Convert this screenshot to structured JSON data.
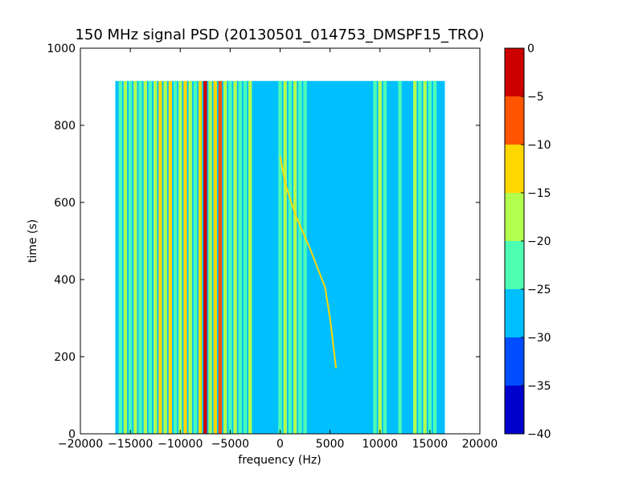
{
  "chart_data": {
    "type": "heatmap",
    "title": "150 MHz signal PSD (20130501_014753_DMSPF15_TRO)",
    "xlabel": "frequency (Hz)",
    "ylabel": "time (s)",
    "xlim": [
      -20000,
      20000
    ],
    "ylim": [
      0,
      1000
    ],
    "xticks": [
      -20000,
      -15000,
      -10000,
      -5000,
      0,
      5000,
      10000,
      15000,
      20000
    ],
    "xtick_labels": [
      "−20000",
      "−15000",
      "−10000",
      "−5000",
      "0",
      "5000",
      "10000",
      "15000",
      "20000"
    ],
    "yticks": [
      0,
      200,
      400,
      600,
      800,
      1000
    ],
    "ytick_labels": [
      "0",
      "200",
      "400",
      "600",
      "800",
      "1000"
    ],
    "grid": false,
    "data_extent": {
      "freq_min": -16500,
      "freq_max": 16500,
      "time_min": 0,
      "time_max": 915
    },
    "background_level": -27.5,
    "colorbar": {
      "vmin": -40,
      "vmax": 0,
      "ticks": [
        0,
        -5,
        -10,
        -15,
        -20,
        -25,
        -30,
        -35,
        -40
      ],
      "tick_labels": [
        "0",
        "−5",
        "−10",
        "−15",
        "−20",
        "−25",
        "−30",
        "−35",
        "−40"
      ],
      "levels": [
        {
          "range": [
            -40,
            -35
          ],
          "color": "#0000cd"
        },
        {
          "range": [
            -35,
            -30
          ],
          "color": "#004dff"
        },
        {
          "range": [
            -30,
            -25
          ],
          "color": "#00bfff"
        },
        {
          "range": [
            -25,
            -20
          ],
          "color": "#4dffb3"
        },
        {
          "range": [
            -20,
            -15
          ],
          "color": "#b3ff4d"
        },
        {
          "range": [
            -15,
            -10
          ],
          "color": "#ffd700"
        },
        {
          "range": [
            -10,
            -5
          ],
          "color": "#ff5500"
        },
        {
          "range": [
            -5,
            0
          ],
          "color": "#cd0000"
        }
      ]
    },
    "stationary_lines": [
      {
        "freq": -16000,
        "level": -22.5
      },
      {
        "freq": -15500,
        "level": -17.5
      },
      {
        "freq": -15000,
        "level": -22.5
      },
      {
        "freq": -14500,
        "level": -17.5
      },
      {
        "freq": -14000,
        "level": -22.5
      },
      {
        "freq": -13500,
        "level": -17.5
      },
      {
        "freq": -13000,
        "level": -22.5
      },
      {
        "freq": -12500,
        "level": -17.5
      },
      {
        "freq": -12000,
        "level": -12.5
      },
      {
        "freq": -11500,
        "level": -17.5
      },
      {
        "freq": -11000,
        "level": -12.5
      },
      {
        "freq": -10500,
        "level": -22.5
      },
      {
        "freq": -10000,
        "level": -17.5
      },
      {
        "freq": -9500,
        "level": -12.5
      },
      {
        "freq": -9000,
        "level": -17.5
      },
      {
        "freq": -8500,
        "level": -22.5
      },
      {
        "freq": -8000,
        "level": -12.5
      },
      {
        "freq": -7500,
        "level": -2.5
      },
      {
        "freq": -7000,
        "level": -17.5
      },
      {
        "freq": -6500,
        "level": -12.5
      },
      {
        "freq": -6000,
        "level": -7.5
      },
      {
        "freq": -5500,
        "level": -17.5
      },
      {
        "freq": -5000,
        "level": -22.5
      },
      {
        "freq": -4500,
        "level": -17.5
      },
      {
        "freq": -4000,
        "level": -22.5
      },
      {
        "freq": -3500,
        "level": -22.5
      },
      {
        "freq": -3000,
        "level": -17.5
      },
      {
        "freq": 0,
        "level": -22.5
      },
      {
        "freq": 500,
        "level": -17.5
      },
      {
        "freq": 1000,
        "level": -22.5
      },
      {
        "freq": 1500,
        "level": -17.5
      },
      {
        "freq": 2000,
        "level": -22.5
      },
      {
        "freq": 2500,
        "level": -22.5
      },
      {
        "freq": 9500,
        "level": -22.5
      },
      {
        "freq": 10000,
        "level": -17.5
      },
      {
        "freq": 10500,
        "level": -22.5
      },
      {
        "freq": 12000,
        "level": -22.5
      },
      {
        "freq": 13500,
        "level": -17.5
      },
      {
        "freq": 14000,
        "level": -22.5
      },
      {
        "freq": 14500,
        "level": -17.5
      },
      {
        "freq": 15000,
        "level": -22.5
      },
      {
        "freq": 15500,
        "level": -22.5
      }
    ],
    "doppler_trace": {
      "level": -12.5,
      "points": [
        {
          "freq": 0,
          "time": 720
        },
        {
          "freq": 500,
          "time": 650
        },
        {
          "freq": 1500,
          "time": 570
        },
        {
          "freq": 3000,
          "time": 480
        },
        {
          "freq": 4500,
          "time": 380
        },
        {
          "freq": 5000,
          "time": 300
        },
        {
          "freq": 5600,
          "time": 170
        }
      ]
    }
  }
}
